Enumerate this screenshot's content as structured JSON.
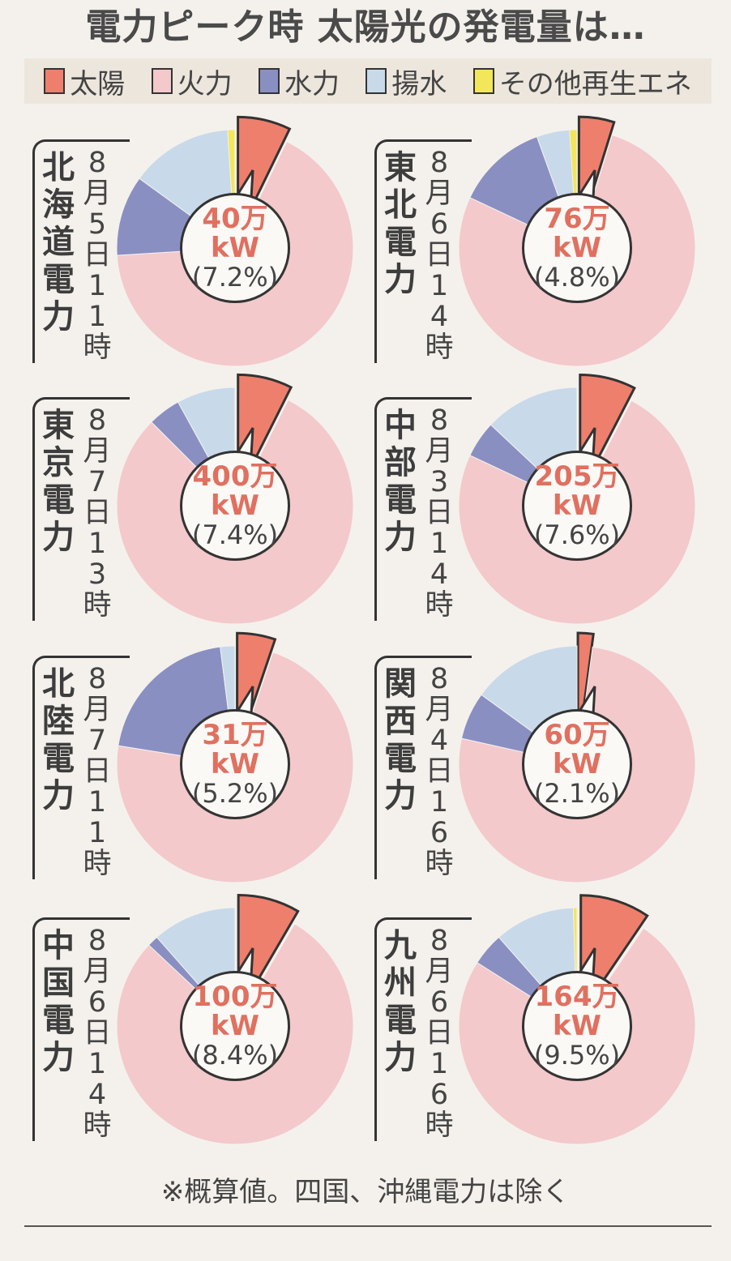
{
  "chart_data": {
    "type": "pie",
    "title": "電力ピーク時 太陽光の発電量は…",
    "legend": [
      {
        "name": "太陽",
        "color": "#ee7f6c"
      },
      {
        "name": "火力",
        "color": "#f3c9cc"
      },
      {
        "name": "水力",
        "color": "#8a8fc2"
      },
      {
        "name": "揚水",
        "color": "#c8d9ea"
      },
      {
        "name": "その他再生エネ",
        "color": "#f3e65a"
      }
    ],
    "regions": [
      {
        "name": "北海道電力",
        "date": "8月5日11時",
        "solar_amount": "40万",
        "unit": "kW",
        "solar_pct_label": "(7.2%)",
        "slices": [
          {
            "name": "太陽",
            "value": 7.2
          },
          {
            "name": "火力",
            "value": 66.8
          },
          {
            "name": "水力",
            "value": 11.0
          },
          {
            "name": "揚水",
            "value": 14.0
          },
          {
            "name": "その他再生エネ",
            "value": 1.0
          }
        ]
      },
      {
        "name": "東北電力",
        "date": "8月6日14時",
        "solar_amount": "76万",
        "unit": "kW",
        "solar_pct_label": "(4.8%)",
        "slices": [
          {
            "name": "太陽",
            "value": 4.8
          },
          {
            "name": "火力",
            "value": 77.2
          },
          {
            "name": "水力",
            "value": 12.5
          },
          {
            "name": "揚水",
            "value": 4.5
          },
          {
            "name": "その他再生エネ",
            "value": 1.0
          }
        ]
      },
      {
        "name": "東京電力",
        "date": "8月7日13時",
        "solar_amount": "400万",
        "unit": "kW",
        "solar_pct_label": "(7.4%)",
        "slices": [
          {
            "name": "太陽",
            "value": 7.4
          },
          {
            "name": "火力",
            "value": 80.1
          },
          {
            "name": "水力",
            "value": 4.5
          },
          {
            "name": "揚水",
            "value": 8.0
          },
          {
            "name": "その他再生エネ",
            "value": 0
          }
        ]
      },
      {
        "name": "中部電力",
        "date": "8月3日14時",
        "solar_amount": "205万",
        "unit": "kW",
        "solar_pct_label": "(7.6%)",
        "slices": [
          {
            "name": "太陽",
            "value": 7.6
          },
          {
            "name": "火力",
            "value": 74.4
          },
          {
            "name": "水力",
            "value": 5.0
          },
          {
            "name": "揚水",
            "value": 13.0
          },
          {
            "name": "その他再生エネ",
            "value": 0
          }
        ]
      },
      {
        "name": "北陸電力",
        "date": "8月7日11時",
        "solar_amount": "31万",
        "unit": "kW",
        "solar_pct_label": "(5.2%)",
        "slices": [
          {
            "name": "太陽",
            "value": 5.2
          },
          {
            "name": "火力",
            "value": 72.3
          },
          {
            "name": "水力",
            "value": 20.5
          },
          {
            "name": "揚水",
            "value": 2.0
          },
          {
            "name": "その他再生エネ",
            "value": 0
          }
        ]
      },
      {
        "name": "関西電力",
        "date": "8月4日16時",
        "solar_amount": "60万",
        "unit": "kW",
        "solar_pct_label": "(2.1%)",
        "slices": [
          {
            "name": "太陽",
            "value": 2.1
          },
          {
            "name": "火力",
            "value": 76.4
          },
          {
            "name": "水力",
            "value": 6.5
          },
          {
            "name": "揚水",
            "value": 15.0
          },
          {
            "name": "その他再生エネ",
            "value": 0
          }
        ]
      },
      {
        "name": "中国電力",
        "date": "8月6日14時",
        "solar_amount": "100万",
        "unit": "kW",
        "solar_pct_label": "(8.4%)",
        "slices": [
          {
            "name": "太陽",
            "value": 8.4
          },
          {
            "name": "火力",
            "value": 78.6
          },
          {
            "name": "水力",
            "value": 1.5
          },
          {
            "name": "揚水",
            "value": 11.5
          },
          {
            "name": "その他再生エネ",
            "value": 0
          }
        ]
      },
      {
        "name": "九州電力",
        "date": "8月6日16時",
        "solar_amount": "164万",
        "unit": "kW",
        "solar_pct_label": "(9.5%)",
        "slices": [
          {
            "name": "太陽",
            "value": 9.5
          },
          {
            "name": "火力",
            "value": 74.5
          },
          {
            "name": "水力",
            "value": 4.5
          },
          {
            "name": "揚水",
            "value": 11.0
          },
          {
            "name": "その他再生エネ",
            "value": 0.5
          }
        ]
      }
    ]
  },
  "footnote": "※概算値。四国、沖縄電力は除く"
}
